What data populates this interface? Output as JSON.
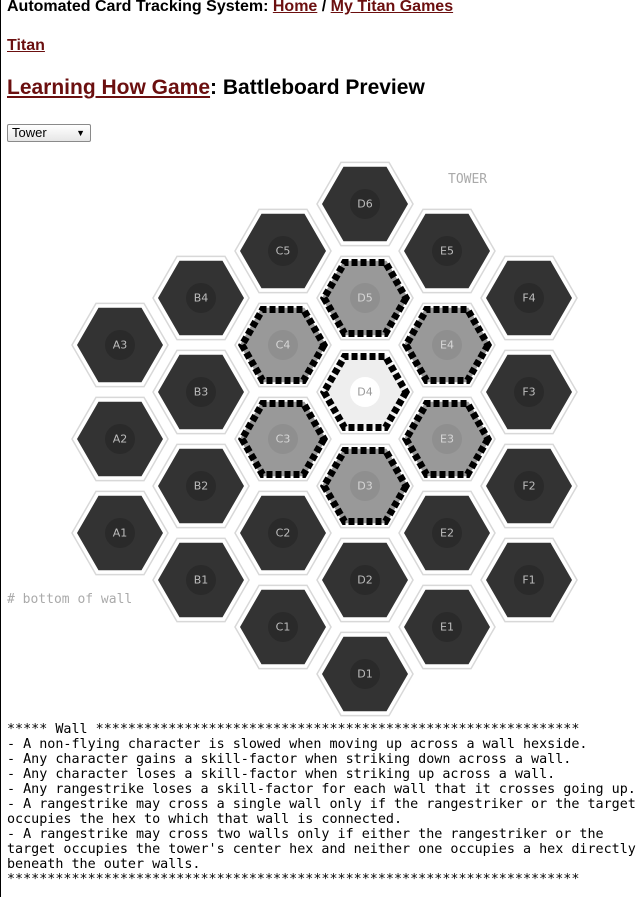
{
  "breadcrumb": {
    "app_title": "Automated Card Tracking System:",
    "home_link": "Home",
    "separator": "/",
    "games_link": "My Titan Games"
  },
  "section_link": "Titan",
  "heading": {
    "game_link": "Learning How Game",
    "suffix": ": Battleboard Preview"
  },
  "terrain_select": {
    "value": "Tower",
    "arrow": "▼"
  },
  "board": {
    "terrain_label": "TOWER",
    "overlay_note": "# bottom of wall",
    "colors": {
      "dark_hex": "#333333",
      "gray_hex": "#999999",
      "center_hex": "#eeeeee",
      "wall": "#000000",
      "hex_border": "#d8d8d8"
    },
    "hexes": [
      {
        "id": "A1",
        "kind": "dark"
      },
      {
        "id": "A2",
        "kind": "dark"
      },
      {
        "id": "A3",
        "kind": "dark"
      },
      {
        "id": "B1",
        "kind": "dark"
      },
      {
        "id": "B2",
        "kind": "dark"
      },
      {
        "id": "B3",
        "kind": "dark"
      },
      {
        "id": "B4",
        "kind": "dark"
      },
      {
        "id": "C1",
        "kind": "dark"
      },
      {
        "id": "C2",
        "kind": "dark"
      },
      {
        "id": "C3",
        "kind": "wall"
      },
      {
        "id": "C4",
        "kind": "wall"
      },
      {
        "id": "C5",
        "kind": "dark"
      },
      {
        "id": "D1",
        "kind": "dark"
      },
      {
        "id": "D2",
        "kind": "dark"
      },
      {
        "id": "D3",
        "kind": "wall"
      },
      {
        "id": "D4",
        "kind": "center"
      },
      {
        "id": "D5",
        "kind": "wall"
      },
      {
        "id": "D6",
        "kind": "dark"
      },
      {
        "id": "E1",
        "kind": "dark"
      },
      {
        "id": "E2",
        "kind": "dark"
      },
      {
        "id": "E3",
        "kind": "wall"
      },
      {
        "id": "E4",
        "kind": "wall"
      },
      {
        "id": "E5",
        "kind": "dark"
      },
      {
        "id": "F1",
        "kind": "dark"
      },
      {
        "id": "F2",
        "kind": "dark"
      },
      {
        "id": "F3",
        "kind": "dark"
      },
      {
        "id": "F4",
        "kind": "dark"
      }
    ]
  },
  "notes": [
    "***** Wall ************************************************************",
    "- A non-flying character is slowed when moving up across a wall hexside.",
    "- Any character gains a skill-factor when striking down across a wall.",
    "- Any character loses a skill-factor when striking up across a wall.",
    "- Any rangestrike loses a skill-factor for each wall that it crosses going up.",
    "- A rangestrike may cross a single wall only if the rangestriker or the target",
    "occupies the hex to which that wall is connected.",
    "- A rangestrike may cross two walls only if either the rangestriker or the",
    "target occupies the tower's center hex and neither one occupies a hex directly",
    "beneath the outer walls.",
    "***********************************************************************"
  ]
}
